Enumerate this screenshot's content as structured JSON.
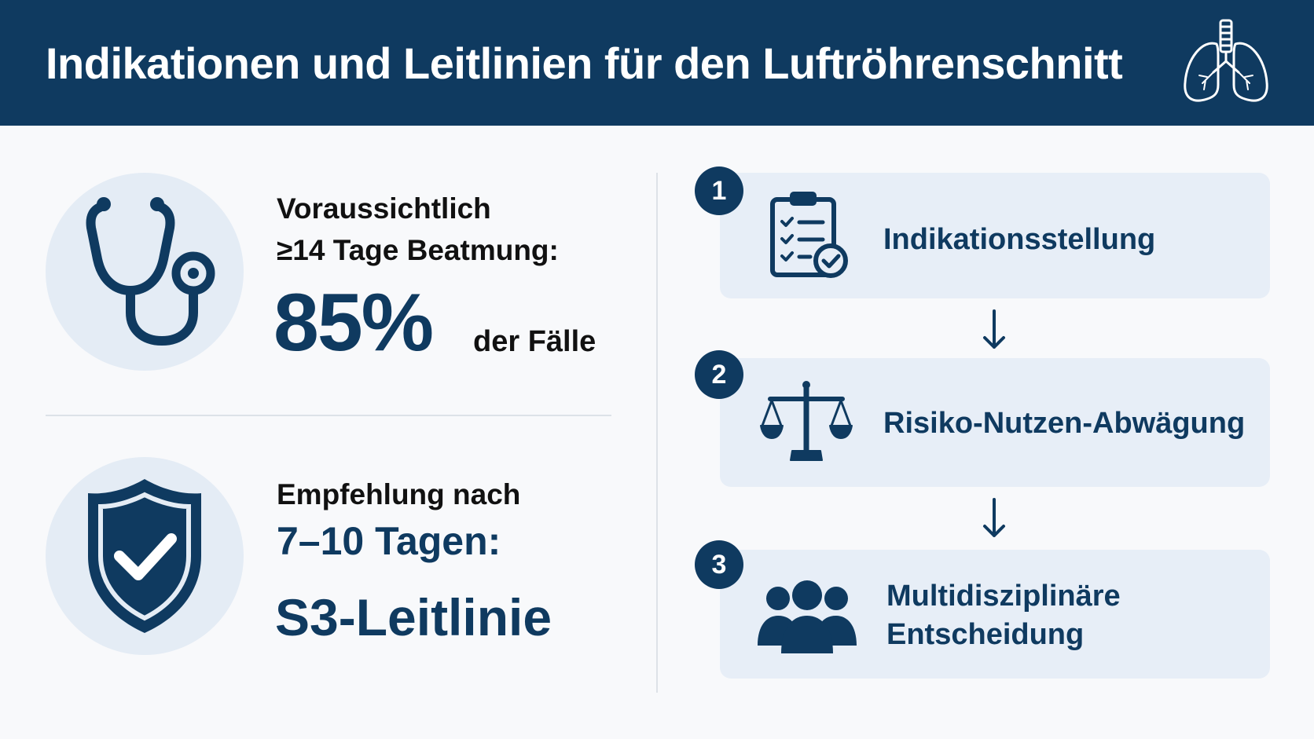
{
  "header": {
    "title": "Indikationen und Leitlinien für den Luftröhrenschnitt",
    "icon": "lungs-icon"
  },
  "stats": [
    {
      "icon": "stethoscope-icon",
      "label_line1": "Voraussichtlich",
      "label_line2": "≥14 Tage Beatmung:",
      "value": "85%",
      "value_suffix": "der Fälle"
    },
    {
      "icon": "shield-check-icon",
      "label_line1": "Empfehlung nach",
      "label_line2": "7–10 Tagen:",
      "value": "S3-Leitlinie"
    }
  ],
  "steps": [
    {
      "number": "1",
      "icon": "clipboard-checklist-icon",
      "label": "Indikationsstellung"
    },
    {
      "number": "2",
      "icon": "scales-icon",
      "label": "Risiko-Nutzen-Abwägung"
    },
    {
      "number": "3",
      "icon": "group-icon",
      "label_line1": "Multidisziplinäre",
      "label_line2": "Entscheidung"
    }
  ],
  "colors": {
    "primary": "#0f3a60",
    "background": "#f8f9fb",
    "panel": "#e7eef7",
    "circle": "#e4ecf5"
  }
}
